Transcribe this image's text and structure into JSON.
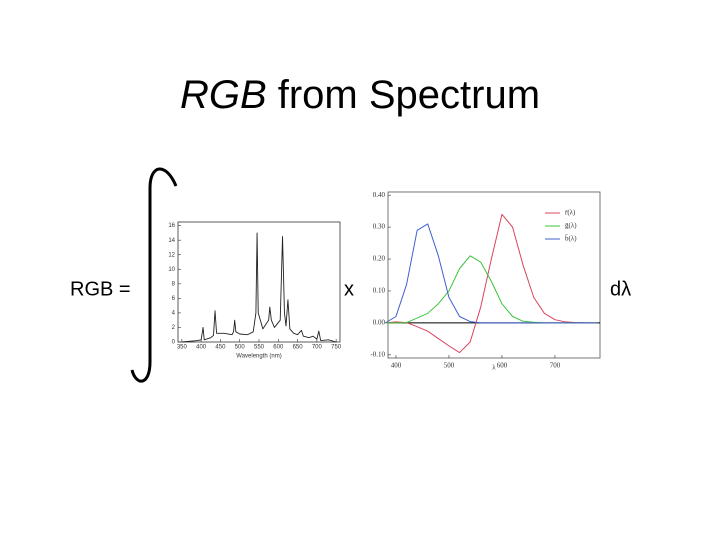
{
  "slide": {
    "title_italic": "RGB",
    "title_rest": "from Spectrum",
    "lhs": "RGB =",
    "times": "x",
    "differential": "dλ"
  },
  "chart_data": [
    {
      "type": "line",
      "xlabel": "Wavelength (nm)",
      "x": [
        350,
        390,
        400,
        405,
        408,
        425,
        432,
        436,
        440,
        460,
        480,
        484,
        487,
        490,
        500,
        520,
        535,
        542,
        545,
        548,
        560,
        575,
        578,
        582,
        590,
        605,
        611,
        616,
        620,
        625,
        630,
        640,
        650,
        660,
        665,
        680,
        690,
        700,
        705,
        710,
        730,
        750
      ],
      "series": [
        {
          "color": "#222222",
          "values": [
            0,
            0.2,
            0.3,
            2.0,
            0.3,
            0.6,
            0.9,
            4.3,
            1.2,
            1.2,
            1.0,
            1.4,
            3.0,
            1.4,
            1.1,
            1.0,
            1.4,
            4,
            15,
            4,
            1.8,
            3,
            4.8,
            3,
            2,
            3,
            14.5,
            4,
            2.2,
            5.8,
            1.8,
            1.2,
            1.0,
            1.6,
            0.8,
            0.6,
            0.8,
            0.4,
            1.5,
            0.2,
            0.3,
            0
          ]
        }
      ],
      "xlim": [
        340,
        760
      ],
      "xticks": [
        350,
        400,
        450,
        500,
        550,
        600,
        650,
        700,
        750
      ],
      "ylim": [
        0,
        16.5
      ],
      "yticks": [
        0,
        2,
        4,
        6,
        8,
        10,
        12,
        14,
        16
      ]
    },
    {
      "type": "line",
      "xlabel": "λ",
      "legend": "top-right",
      "x": [
        380,
        400,
        420,
        440,
        460,
        480,
        500,
        520,
        540,
        560,
        580,
        600,
        620,
        640,
        660,
        680,
        700,
        720,
        740,
        760,
        780
      ],
      "series": [
        {
          "name": "r̄(λ)",
          "color": "#d9445f",
          "values": [
            0,
            0.003,
            0.001,
            -0.012,
            -0.026,
            -0.049,
            -0.072,
            -0.093,
            -0.06,
            0.05,
            0.2,
            0.34,
            0.3,
            0.18,
            0.08,
            0.03,
            0.01,
            0.003,
            0.001,
            0,
            0
          ]
        },
        {
          "name": "ḡ(λ)",
          "color": "#3cc43c",
          "values": [
            0,
            0,
            0.001,
            0.015,
            0.03,
            0.06,
            0.1,
            0.17,
            0.21,
            0.19,
            0.13,
            0.06,
            0.02,
            0.005,
            0.002,
            0,
            0,
            0,
            0,
            0,
            0
          ]
        },
        {
          "name": "b̄(λ)",
          "color": "#3f5fd0",
          "values": [
            0,
            0.02,
            0.12,
            0.29,
            0.31,
            0.21,
            0.08,
            0.02,
            0.004,
            0,
            0,
            0,
            0,
            0,
            0,
            0,
            0,
            0,
            0,
            0,
            0
          ]
        }
      ],
      "xlim": [
        385,
        785
      ],
      "xticks": [
        400,
        500,
        600,
        700
      ],
      "ylim": [
        -0.11,
        0.41
      ],
      "yticks": [
        {
          "value": 0.4,
          "label": "0.40"
        },
        {
          "value": 0.3,
          "label": "0.30"
        },
        {
          "value": 0.2,
          "label": "0.20"
        },
        {
          "value": 0.1,
          "label": "0.10"
        },
        {
          "value": 0,
          "label": "0.00"
        },
        {
          "value": -0.1,
          "label": "-0.10"
        }
      ],
      "zero_line": true
    }
  ]
}
